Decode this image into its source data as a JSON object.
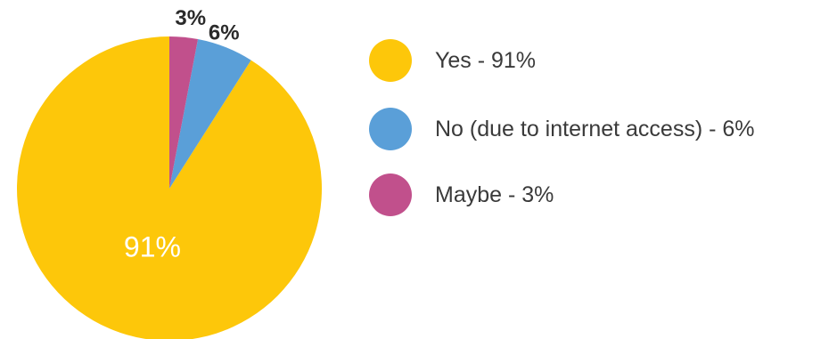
{
  "chart_data": {
    "type": "pie",
    "slices": [
      {
        "label": "Yes",
        "value": 91,
        "value_label": "91%",
        "legend": "Yes - 91%",
        "color": "#fdc70a"
      },
      {
        "label": "No (due to internet access)",
        "value": 6,
        "value_label": "6%",
        "legend": "No (due to internet access) - 6%",
        "color": "#5a9fd8"
      },
      {
        "label": "Maybe",
        "value": 3,
        "value_label": "3%",
        "legend": "Maybe - 3%",
        "color": "#c1508c"
      }
    ],
    "start_angle": "12 o'clock",
    "direction": "counter-clockwise",
    "legend_position": "right",
    "value_label_colors": {
      "inside": "#ffffff",
      "outside": "#2a2a2a"
    }
  }
}
